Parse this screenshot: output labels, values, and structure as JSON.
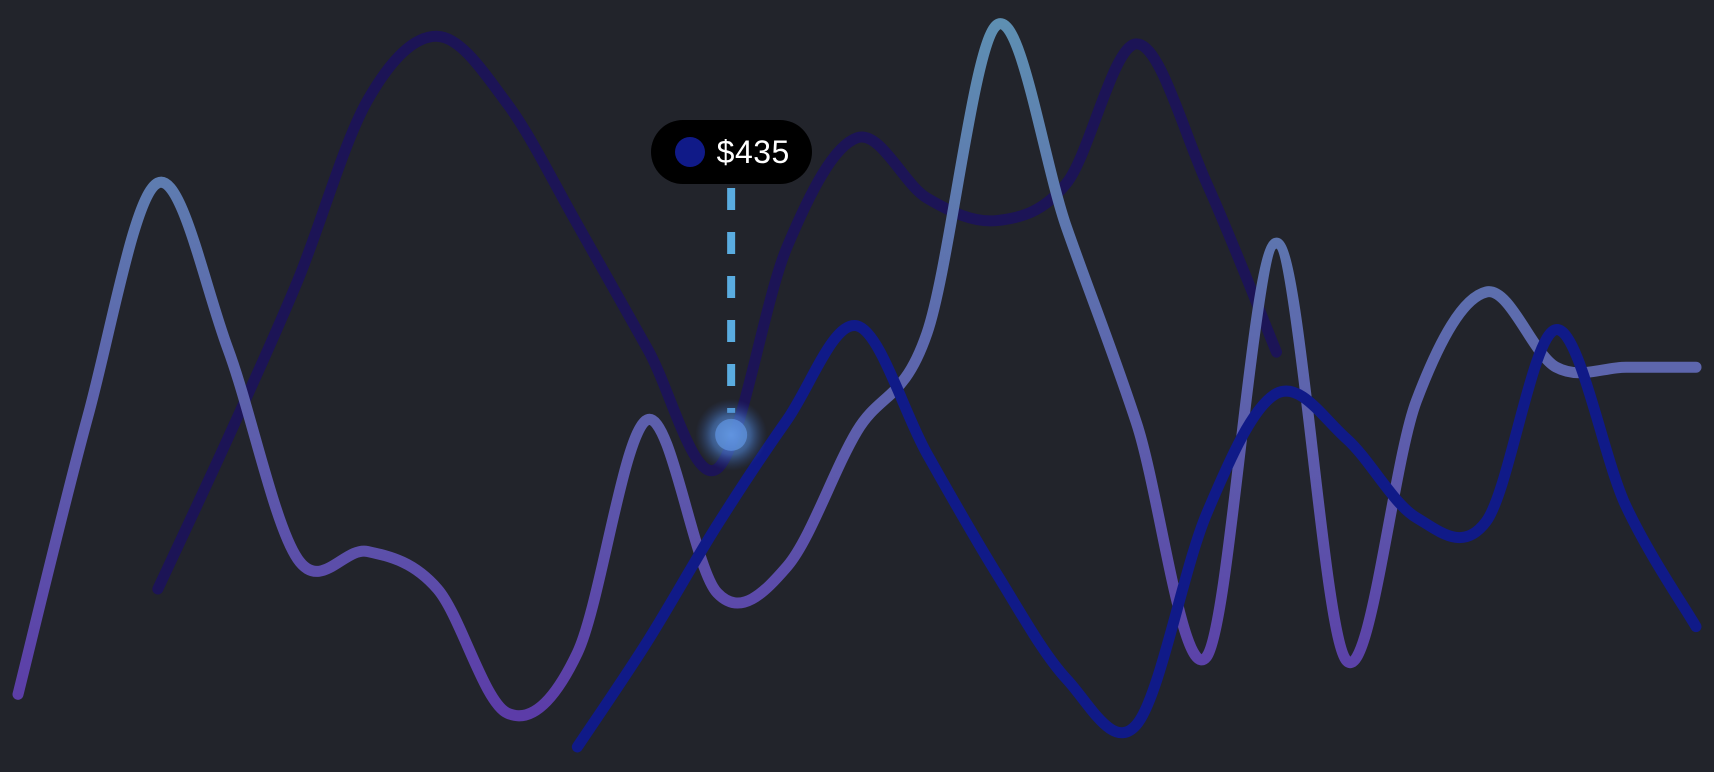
{
  "chart_data": {
    "type": "line",
    "title": "",
    "xlabel": "",
    "ylabel": "",
    "grid": false,
    "legend": "none",
    "x": [
      0,
      1,
      2,
      3,
      4,
      5,
      6,
      7,
      8,
      9,
      10,
      11,
      12,
      13,
      14,
      15,
      16,
      17,
      18,
      19,
      20,
      21,
      22,
      23,
      24
    ],
    "ylim": [
      0,
      1000
    ],
    "series": [
      {
        "color": "#101a88",
        "style": "smooth",
        "values": [
          null,
          null,
          null,
          null,
          null,
          null,
          null,
          null,
          20,
          160,
          315,
          455,
          580,
          410,
          250,
          110,
          50,
          330,
          490,
          430,
          325,
          320,
          575,
          340,
          180
        ]
      },
      {
        "color": "#1c1456",
        "style": "smooth",
        "values": [
          null,
          null,
          230,
          430,
          640,
          880,
          965,
          875,
          715,
          550,
          390,
          685,
          830,
          750,
          720,
          770,
          955,
          770,
          545,
          null,
          null,
          null,
          null,
          null,
          null
        ]
      },
      {
        "color_start": "#5c3ca8",
        "color_end": "#5e8fb2",
        "style": "smooth",
        "values": [
          90,
          460,
          770,
          550,
          270,
          280,
          230,
          65,
          145,
          455,
          225,
          260,
          440,
          570,
          980,
          710,
          450,
          140,
          690,
          135,
          480,
          625,
          525,
          525,
          525
        ]
      }
    ],
    "hover": {
      "x": 10.2,
      "value": 435,
      "label": "$435",
      "series_color": "#101a88",
      "guide_color": "#5aace0"
    }
  }
}
